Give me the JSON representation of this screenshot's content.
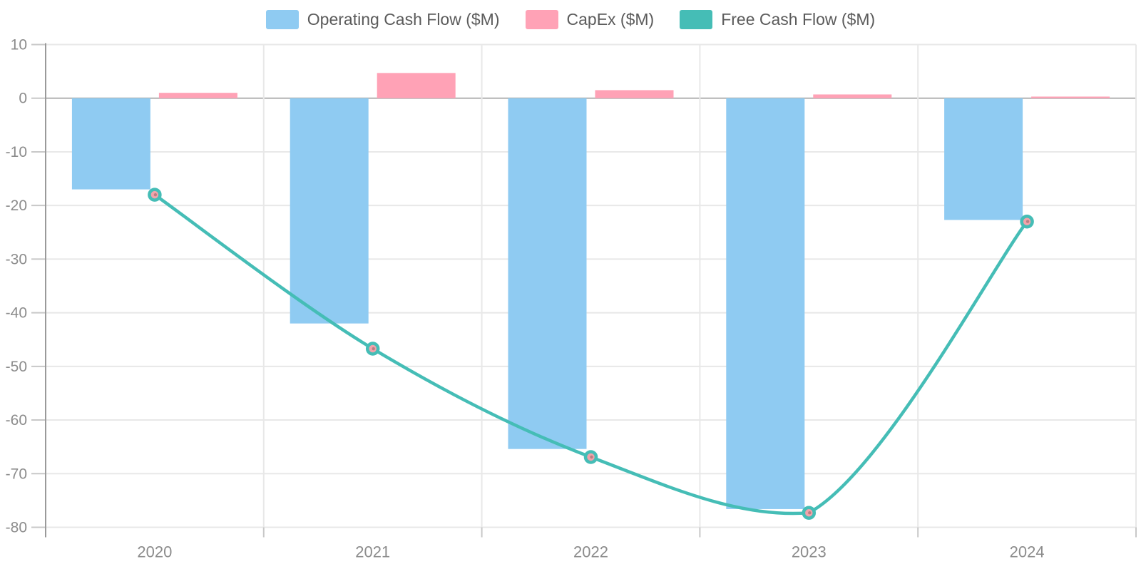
{
  "chart_data": {
    "type": "combo-bar-line",
    "title": "",
    "categories": [
      "2020",
      "2021",
      "2022",
      "2023",
      "2024"
    ],
    "series": [
      {
        "name": "Operating Cash Flow ($M)",
        "type": "bar",
        "color": "#8FCBF2",
        "values": [
          -17.0,
          -42.0,
          -65.4,
          -76.6,
          -22.7
        ]
      },
      {
        "name": "CapEx ($M)",
        "type": "bar",
        "color": "#FFA2B6",
        "values": [
          1.0,
          4.7,
          1.5,
          0.7,
          0.3
        ]
      },
      {
        "name": "Free Cash Flow ($M)",
        "type": "line",
        "color": "#45BDB6",
        "marker_fill": "#F2A3AB",
        "marker_dot": "#BA7F82",
        "values": [
          -18.0,
          -46.7,
          -66.9,
          -77.3,
          -23.0
        ]
      }
    ],
    "ylim": [
      -80,
      10
    ],
    "y_ticks": [
      10,
      0,
      -10,
      -20,
      -30,
      -40,
      -50,
      -60,
      -70,
      -80
    ],
    "grid": true,
    "legend_position": "top",
    "axis_colors": {
      "grid_line": "#e8e8e8",
      "zero_line": "#b3b3b3",
      "axis_line": "#9a9a9a",
      "tick_mark": "#c8c8c8",
      "label": "#8c8c8c"
    }
  }
}
